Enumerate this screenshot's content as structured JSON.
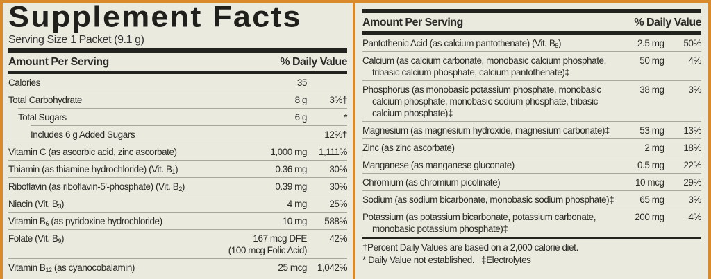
{
  "left": {
    "title": "Supplement Facts",
    "serving_size": "Serving Size 1 Packet (9.1 g)",
    "header": {
      "amount": "Amount Per Serving",
      "dv": "% Daily Value"
    },
    "rows": [
      {
        "name": "Calories",
        "amount": "35",
        "dv": ""
      },
      {
        "name": "Total Carbohydrate",
        "amount": "8 g",
        "dv": "3%†"
      },
      {
        "name": "Total Sugars",
        "amount": "6 g",
        "dv": "*",
        "indent": 1
      },
      {
        "name": "Includes 6 g Added Sugars",
        "amount": "",
        "dv": "12%†",
        "indent": 2
      },
      {
        "name": "Vitamin C (as ascorbic acid, zinc ascorbate)",
        "amount": "1,000 mg",
        "dv": "1,111%"
      },
      {
        "name": "Thiamin (as thiamine hydrochloride) (Vit. B",
        "sub": "1",
        "post": ")",
        "amount": "0.36 mg",
        "dv": "30%"
      },
      {
        "name": "Riboflavin (as riboflavin-5'-phosphate) (Vit. B",
        "sub": "2",
        "post": ")",
        "amount": "0.39 mg",
        "dv": "30%"
      },
      {
        "name": "Niacin (Vit. B",
        "sub": "3",
        "post": ")",
        "amount": "4 mg",
        "dv": "25%"
      },
      {
        "name": "Vitamin B",
        "sub": "6",
        "post": " (as pyridoxine hydrochloride)",
        "amount": "10 mg",
        "dv": "588%"
      },
      {
        "name": "Folate (Vit. B",
        "sub": "9",
        "post": ")",
        "amount": "167 mcg DFE",
        "amount2": "(100 mcg Folic Acid)",
        "dv": "42%"
      },
      {
        "name": "Vitamin B",
        "sub": "12",
        "post": " (as cyanocobalamin)",
        "amount": "25 mcg",
        "dv": "1,042%"
      }
    ]
  },
  "right": {
    "header": {
      "amount": "Amount Per Serving",
      "dv": "% Daily Value"
    },
    "rows": [
      {
        "name": "Pantothenic Acid (as calcium pantothenate) (Vit. B",
        "sub": "5",
        "post": ")",
        "amount": "2.5 mg",
        "dv": "50%"
      },
      {
        "name": "Calcium (as calcium carbonate, monobasic calcium phosphate, tribasic calcium phosphate, calcium pantothenate)‡",
        "amount": "50 mg",
        "dv": "4%"
      },
      {
        "name": "Phosphorus (as monobasic potassium phosphate, monobasic calcium phosphate, monobasic sodium phosphate, tribasic calcium phosphate)‡",
        "amount": "38 mg",
        "dv": "3%"
      },
      {
        "name": "Magnesium (as magnesium hydroxide, magnesium carbonate)‡",
        "amount": "53 mg",
        "dv": "13%"
      },
      {
        "name": "Zinc (as zinc ascorbate)",
        "amount": "2 mg",
        "dv": "18%"
      },
      {
        "name": "Manganese (as manganese gluconate)",
        "amount": "0.5 mg",
        "dv": "22%"
      },
      {
        "name": "Chromium (as chromium picolinate)",
        "amount": "10 mcg",
        "dv": "29%"
      },
      {
        "name": "Sodium (as sodium bicarbonate, monobasic sodium phosphate)‡",
        "amount": "65 mg",
        "dv": "3%"
      },
      {
        "name": "Potassium (as potassium bicarbonate, potassium carbonate, monobasic potassium phosphate)‡",
        "amount": "200 mg",
        "dv": "4%"
      }
    ],
    "footnotes": [
      "†Percent Daily Values are based on a 2,000 calorie diet.",
      "* Daily Value not established.   ‡Electrolytes"
    ]
  },
  "colors": {
    "background_border": "#d98a2a",
    "label": "#ebeadf",
    "text": "#2a2a26"
  }
}
